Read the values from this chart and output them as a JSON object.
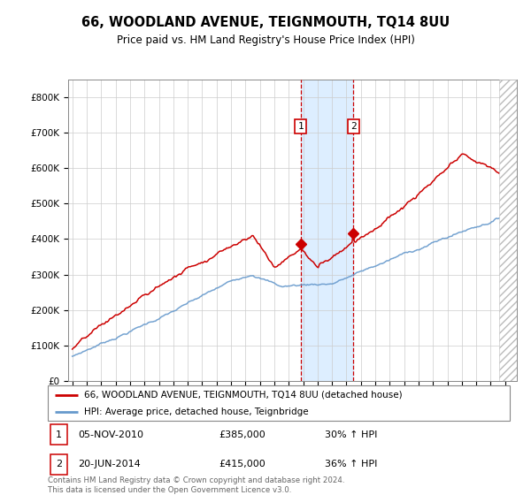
{
  "title": "66, WOODLAND AVENUE, TEIGNMOUTH, TQ14 8UU",
  "subtitle": "Price paid vs. HM Land Registry's House Price Index (HPI)",
  "ylim": [
    0,
    850000
  ],
  "yticks": [
    0,
    100000,
    200000,
    300000,
    400000,
    500000,
    600000,
    700000,
    800000
  ],
  "ytick_labels": [
    "£0",
    "£100K",
    "£200K",
    "£300K",
    "£400K",
    "£500K",
    "£600K",
    "£700K",
    "£800K"
  ],
  "xlim_start": 1994.7,
  "xlim_end": 2025.8,
  "sale1_x": 2010.84,
  "sale1_y": 385000,
  "sale1_label": "1",
  "sale1_date": "05-NOV-2010",
  "sale1_price": "£385,000",
  "sale1_hpi": "30% ↑ HPI",
  "sale2_x": 2014.47,
  "sale2_y": 415000,
  "sale2_label": "2",
  "sale2_date": "20-JUN-2014",
  "sale2_price": "£415,000",
  "sale2_hpi": "36% ↑ HPI",
  "legend_line1": "66, WOODLAND AVENUE, TEIGNMOUTH, TQ14 8UU (detached house)",
  "legend_line2": "HPI: Average price, detached house, Teignbridge",
  "footer": "Contains HM Land Registry data © Crown copyright and database right 2024.\nThis data is licensed under the Open Government Licence v3.0.",
  "red_color": "#cc0000",
  "blue_color": "#6699cc",
  "shading_color": "#ddeeff",
  "background_color": "#ffffff",
  "grid_color": "#cccccc"
}
